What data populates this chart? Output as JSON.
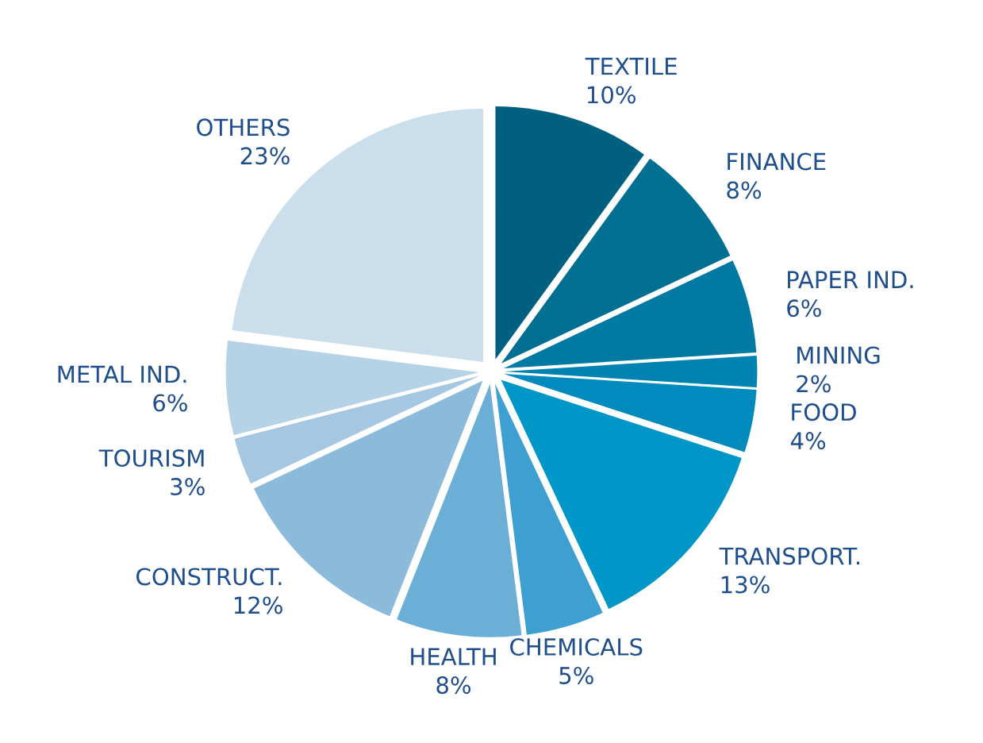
{
  "chart_data": {
    "type": "pie",
    "categories": [
      "TEXTILE",
      "FINANCE",
      "PAPER IND.",
      "MINING",
      "FOOD",
      "TRANSPORT.",
      "CHEMICALS",
      "HEALTH",
      "CONSTRUCT.",
      "TOURISM",
      "METAL IND.",
      "OTHERS"
    ],
    "values": [
      10,
      8,
      6,
      2,
      4,
      13,
      5,
      8,
      12,
      3,
      6,
      23
    ],
    "value_labels": [
      "10%",
      "8%",
      "6%",
      "2%",
      "4%",
      "13%",
      "5%",
      "8%",
      "12%",
      "3%",
      "6%",
      "23%"
    ],
    "colors": [
      "#00607f",
      "#006f92",
      "#0079a3",
      "#0083b0",
      "#008bbc",
      "#0096c8",
      "#3ea0d0",
      "#6cafd6",
      "#8bbadb",
      "#a5c7e2",
      "#b6d2e7",
      "#cadeec"
    ],
    "legend": false
  }
}
